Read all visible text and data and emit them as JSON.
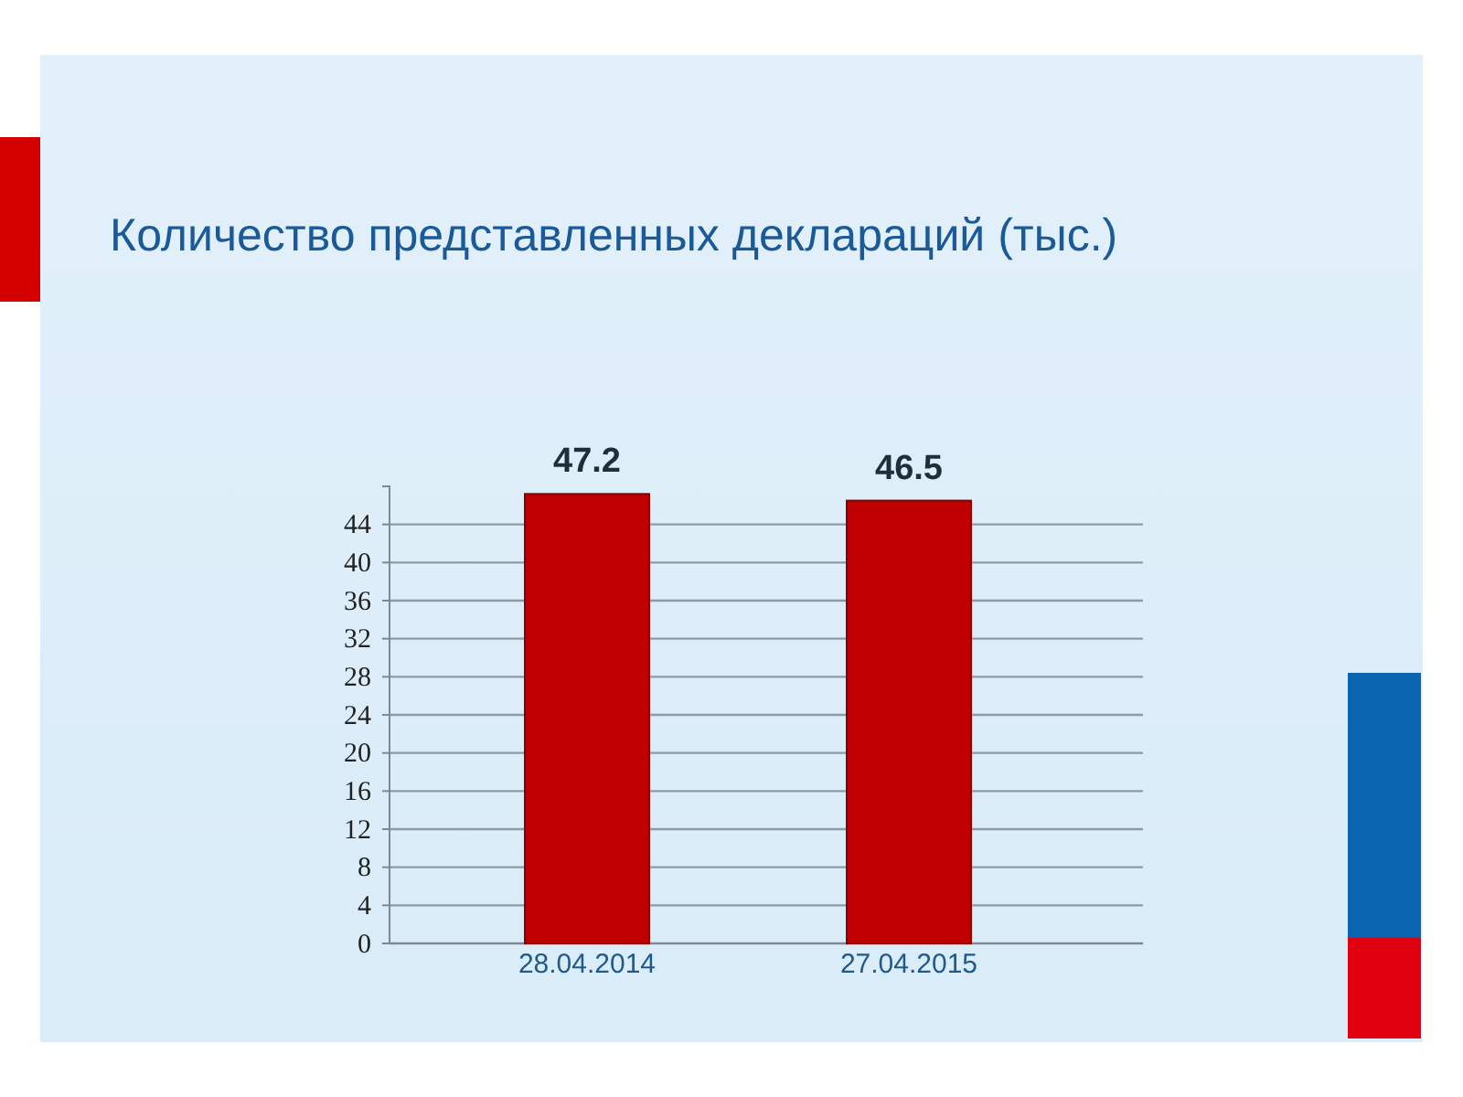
{
  "chart_data": {
    "type": "bar",
    "title": "Количество представленных деклараций (тыс.)",
    "categories": [
      "28.04.2014",
      "27.04.2015"
    ],
    "values": [
      47.2,
      46.5
    ],
    "color": "#c00000",
    "ylim": [
      0,
      48
    ],
    "yticks": [
      0,
      4,
      8,
      12,
      16,
      20,
      24,
      28,
      32,
      36,
      40,
      44
    ],
    "grid": "y",
    "data_labels": true
  }
}
